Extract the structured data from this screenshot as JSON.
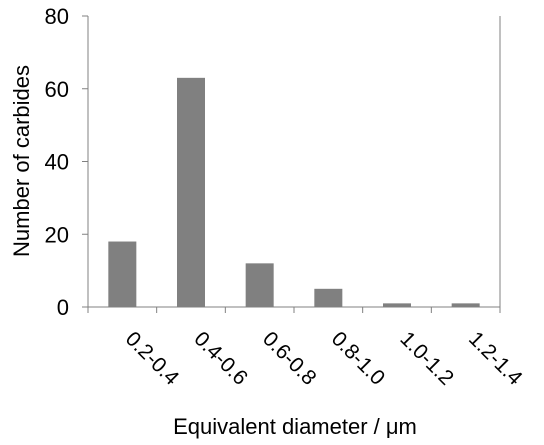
{
  "chart_data": {
    "type": "bar",
    "title": "",
    "xlabel": "Equivalent diameter / μm",
    "ylabel": "Number of carbides",
    "categories": [
      "0.2-0.4",
      "0.4-0.6",
      "0.6-0.8",
      "0.8-1.0",
      "1.0-1.2",
      "1.2-1.4"
    ],
    "values": [
      18,
      63,
      12,
      5,
      1,
      1
    ],
    "ylim": [
      0,
      80
    ],
    "yticks": [
      "0",
      "20",
      "40",
      "60",
      "80"
    ],
    "grid": false,
    "legend": "none",
    "bar_color": "#808080"
  }
}
